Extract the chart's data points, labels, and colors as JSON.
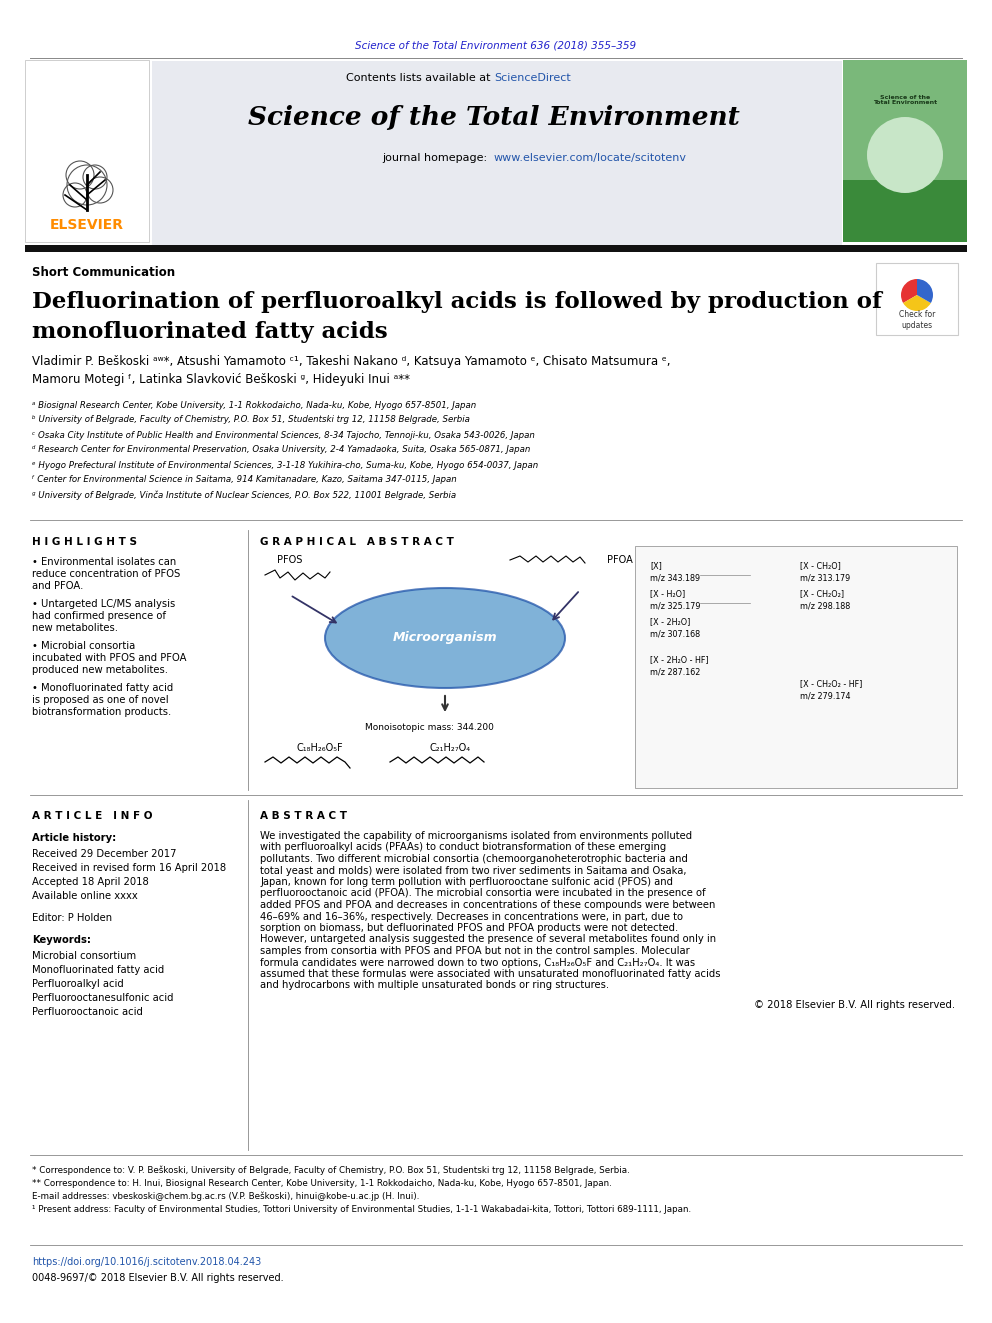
{
  "page_bg": "#ffffff",
  "top_citation": "Science of the Total Environment 636 (2018) 355–359",
  "top_citation_color": "#2222cc",
  "header_bg": "#e8eaf0",
  "journal_title": "Science of the Total Environment",
  "journal_url": "www.elsevier.com/locate/scitotenv",
  "journal_url_color": "#2255aa",
  "section_label": "Short Communication",
  "article_title_line1": "Defluorination of perfluoroalkyl acids is followed by production of",
  "article_title_line2": "monofluorinated fatty acids",
  "authors": "Vladimir P. Beškoski ᵃʷ*, Atsushi Yamamoto ᶜ¹, Takeshi Nakano ᵈ, Katsuya Yamamoto ᵉ, Chisato Matsumura ᵉ,",
  "authors2": "Mamoru Motegi ᶠ, Latinka Slavković Beškoski ᵍ, Hideyuki Inui ᵃ**",
  "affiliations": [
    "ᵃ Biosignal Research Center, Kobe University, 1-1 Rokkodaicho, Nada-ku, Kobe, Hyogo 657-8501, Japan",
    "ᵇ University of Belgrade, Faculty of Chemistry, P.O. Box 51, Studentski trg 12, 11158 Belgrade, Serbia",
    "ᶜ Osaka City Institute of Public Health and Environmental Sciences, 8-34 Tajocho, Tennoji-ku, Osaka 543-0026, Japan",
    "ᵈ Research Center for Environmental Preservation, Osaka University, 2-4 Yamadaoka, Suita, Osaka 565-0871, Japan",
    "ᵉ Hyogo Prefectural Institute of Environmental Sciences, 3-1-18 Yukihira-cho, Suma-ku, Kobe, Hyogo 654-0037, Japan",
    "ᶠ Center for Environmental Science in Saitama, 914 Kamitanadare, Kazo, Saitama 347-0115, Japan",
    "ᵍ University of Belgrade, Vinča Institute of Nuclear Sciences, P.O. Box 522, 11001 Belgrade, Serbia"
  ],
  "highlights_title": "H I G H L I G H T S",
  "highlights": [
    "• Environmental isolates can reduce concentration of PFOS and PFOA.",
    "• Untargeted LC/MS analysis had confirmed presence of new metabolites.",
    "• Microbial consortia incubated with PFOS and PFOA produced new metabolites.",
    "• Monofluorinated fatty acid is proposed as one of novel biotransformation products."
  ],
  "graphical_abstract_title": "G R A P H I C A L   A B S T R A C T",
  "article_info_title": "A R T I C L E   I N F O",
  "article_history_label": "Article history:",
  "received": "Received 29 December 2017",
  "revised": "Received in revised form 16 April 2018",
  "accepted": "Accepted 18 April 2018",
  "online": "Available online xxxx",
  "editor_label": "Editor: P Holden",
  "keywords_label": "Keywords:",
  "keywords": [
    "Microbial consortium",
    "Monofluorinated fatty acid",
    "Perfluoroalkyl acid",
    "Perfluorooctanesulfonic acid",
    "Perfluorooctanoic acid"
  ],
  "abstract_title": "A B S T R A C T",
  "abstract_text": "We investigated the capability of microorganisms isolated from environments polluted with perfluoroalkyl acids (PFAAs) to conduct biotransformation of these emerging pollutants. Two different microbial consortia (chemoorganoheterotrophic bacteria and total yeast and molds) were isolated from two river sediments in Saitama and Osaka, Japan, known for long term pollution with perfluorooctane sulfonic acid (PFOS) and perfluorooctanoic acid (PFOA). The microbial consortia were incubated in the presence of added PFOS and PFOA and decreases in concentrations of these compounds were between 46–69% and 16–36%, respectively. Decreases in concentrations were, in part, due to sorption on biomass, but defluorinated PFOS and PFOA products were not detected. However, untargeted analysis suggested the presence of several metabolites found only in samples from consortia with PFOS and PFOA but not in the control samples. Molecular formula candidates were narrowed down to two options, C₁₈H₂₆O₅F and C₂₁H₂₇O₄. It was assumed that these formulas were associated with unsaturated monofluorinated fatty acids and hydrocarbons with multiple unsaturated bonds or ring structures.",
  "copyright": "© 2018 Elsevier B.V. All rights reserved.",
  "footnote1": "* Correspondence to: V. P. Beškoski, University of Belgrade, Faculty of Chemistry, P.O. Box 51, Studentski trg 12, 11158 Belgrade, Serbia.",
  "footnote2": "** Correspondence to: H. Inui, Biosignal Research Center, Kobe University, 1-1 Rokkodaicho, Nada-ku, Kobe, Hyogo 657-8501, Japan.",
  "email_label": "E-mail addresses:",
  "email_text": "vbeskoski@chem.bg.ac.rs (V.P. Beškoski), hinui@kobe-u.ac.jp (H. Inui).",
  "present_address": "¹ Present address: Faculty of Environmental Studies, Tottori University of Environmental Studies, 1-1-1 Wakabadai-kita, Tottori, Tottori 689-1111, Japan.",
  "doi": "https://doi.org/10.1016/j.scitotenv.2018.04.243",
  "issn": "0048-9697/© 2018 Elsevier B.V. All rights reserved.",
  "doi_color": "#2255aa",
  "separator_color": "#888888",
  "dark_separator_color": "#111111",
  "elsevier_color": "#ff8c00",
  "sciencedirect_color": "#2255aa"
}
